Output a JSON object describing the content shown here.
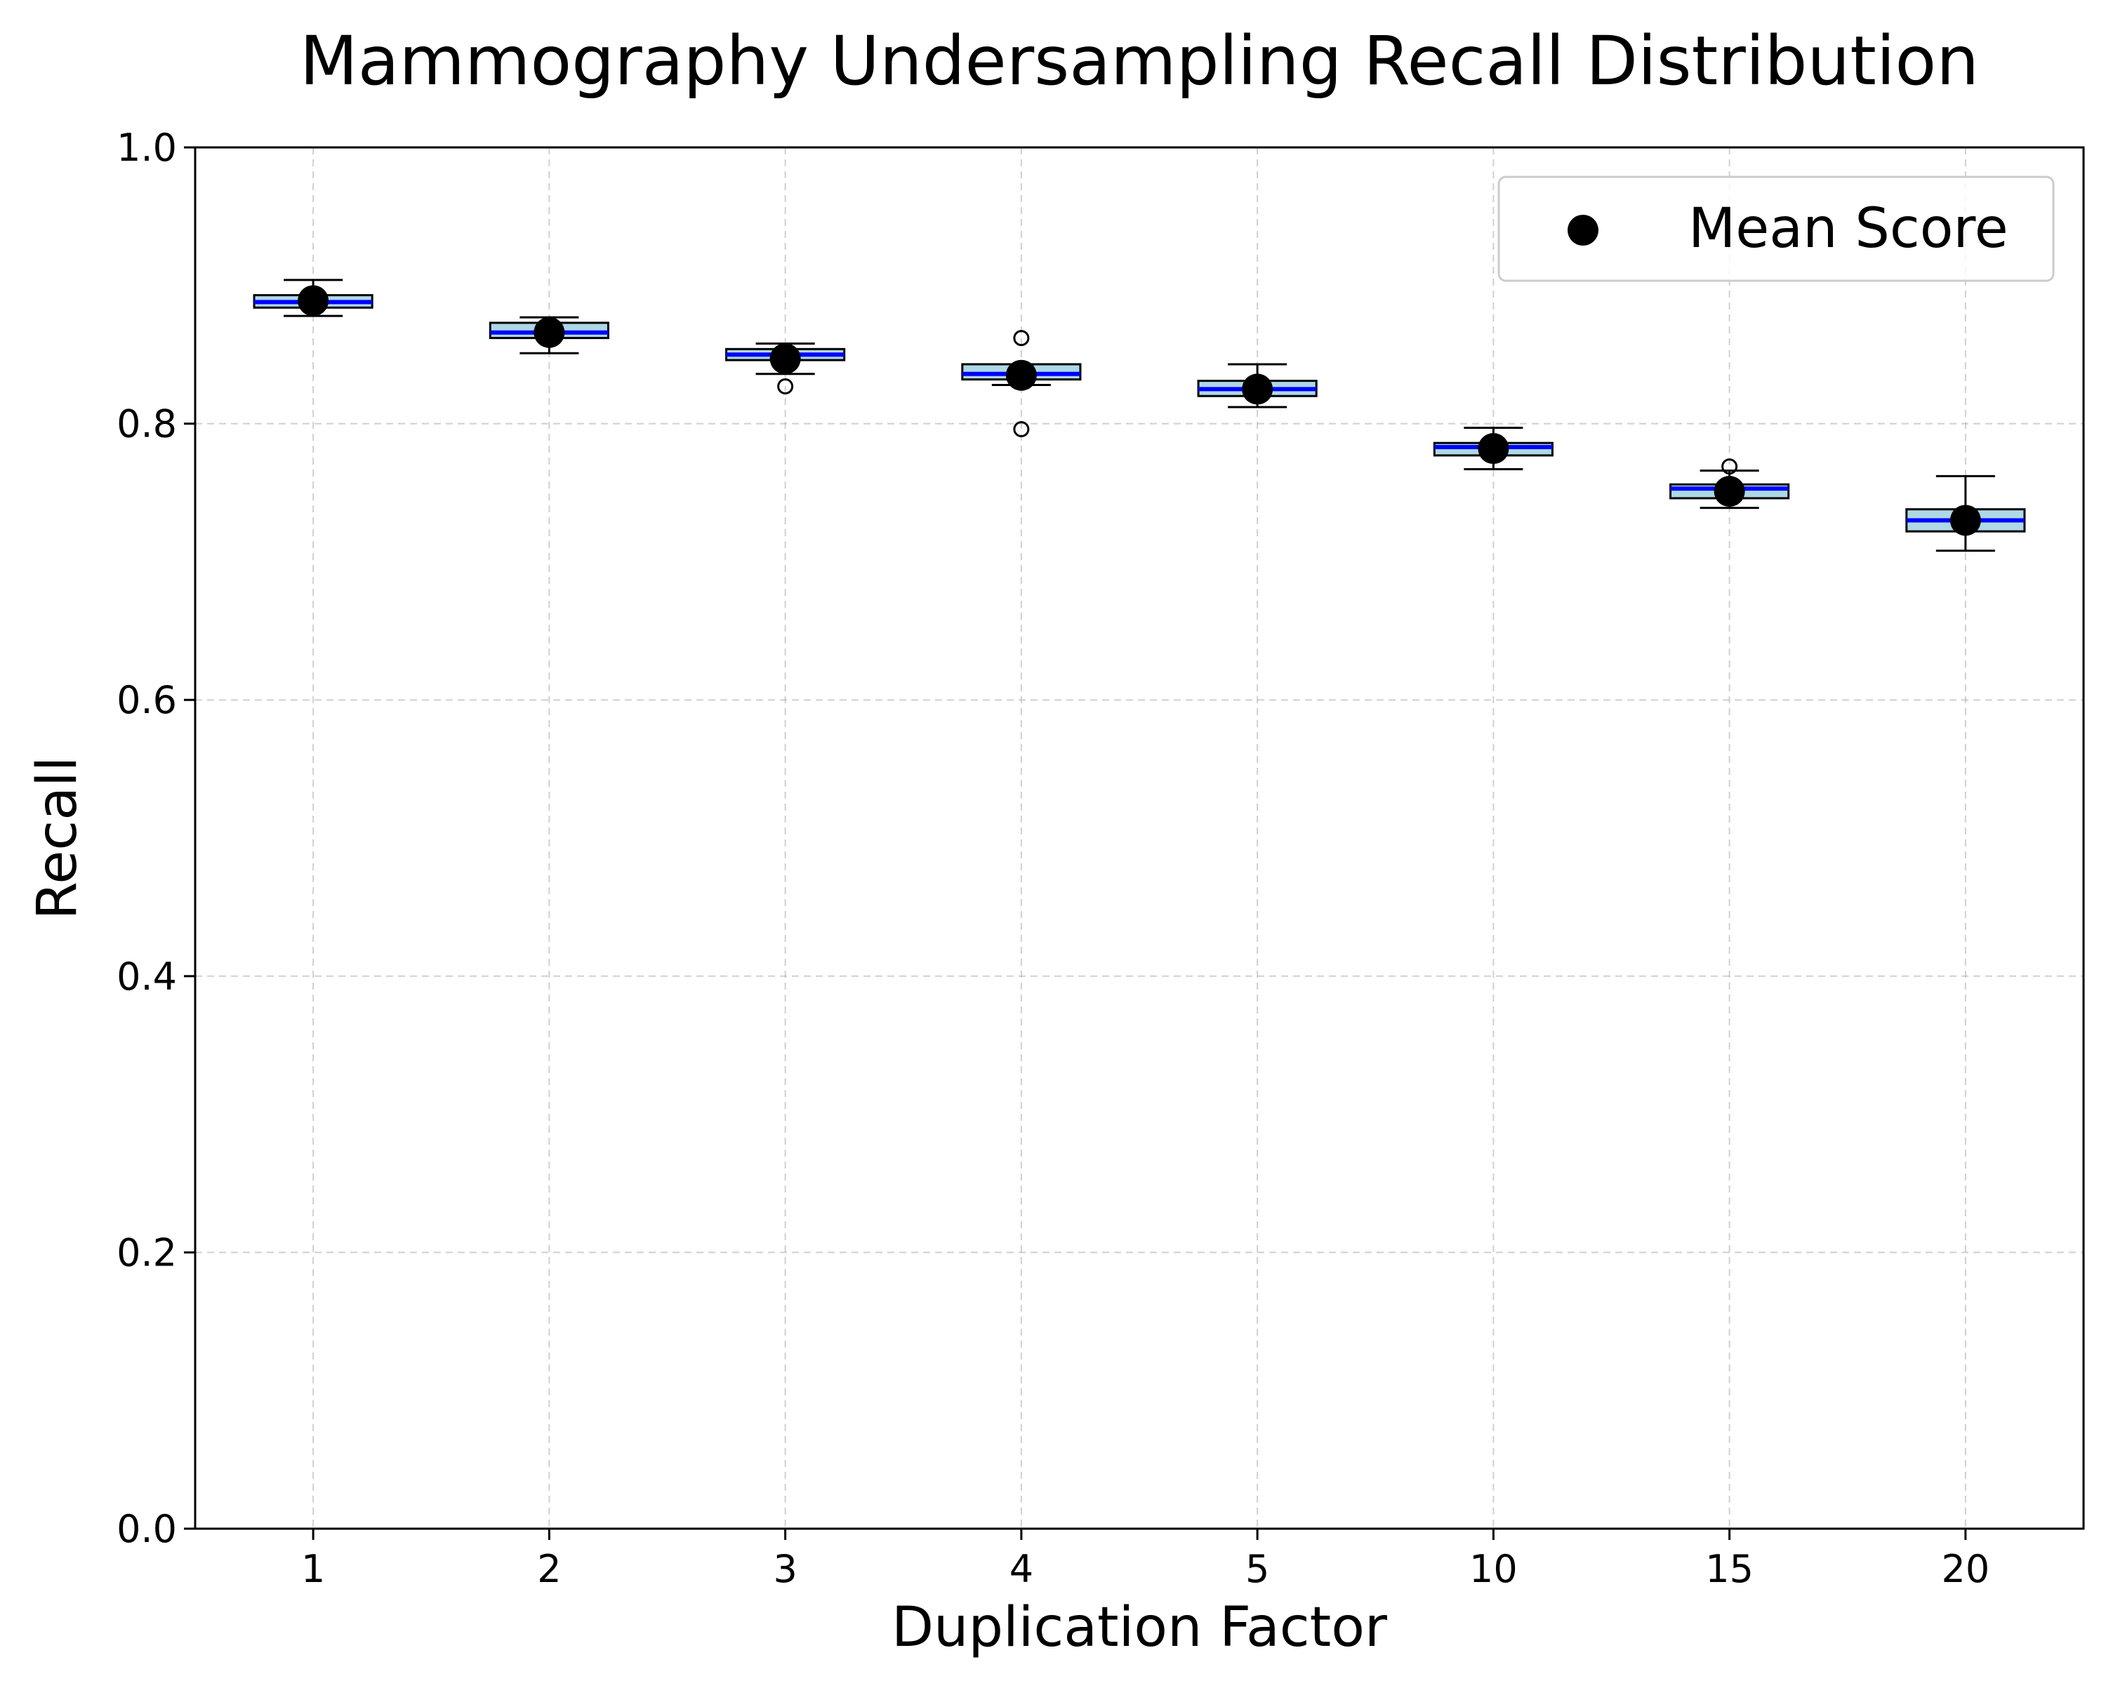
{
  "chart_data": {
    "type": "box",
    "title": "Mammography Undersampling Recall Distribution",
    "xlabel": "Duplication Factor",
    "ylabel": "Recall",
    "ylim": [
      0.0,
      1.0
    ],
    "yticks": [
      "0.0",
      "0.2",
      "0.4",
      "0.6",
      "0.8",
      "1.0"
    ],
    "categories": [
      "1",
      "2",
      "3",
      "4",
      "5",
      "10",
      "15",
      "20"
    ],
    "grid": true,
    "legend": {
      "position": "top-right",
      "entries": [
        "Mean Score"
      ]
    },
    "colors": {
      "box_fill": "#add8e6",
      "box_edge": "#000000",
      "median": "#0000ff",
      "mean_marker": "#000000",
      "grid": "#b0b0b0"
    },
    "boxes": [
      {
        "category": "1",
        "whisker_low": 0.878,
        "q1": 0.884,
        "median": 0.888,
        "q3": 0.893,
        "whisker_high": 0.904,
        "mean": 0.889,
        "outliers": []
      },
      {
        "category": "2",
        "whisker_low": 0.851,
        "q1": 0.862,
        "median": 0.866,
        "q3": 0.873,
        "whisker_high": 0.877,
        "mean": 0.866,
        "outliers": []
      },
      {
        "category": "3",
        "whisker_low": 0.836,
        "q1": 0.846,
        "median": 0.85,
        "q3": 0.854,
        "whisker_high": 0.858,
        "mean": 0.847,
        "outliers": [
          0.827
        ]
      },
      {
        "category": "4",
        "whisker_low": 0.828,
        "q1": 0.832,
        "median": 0.836,
        "q3": 0.843,
        "whisker_high": 0.843,
        "mean": 0.835,
        "outliers": [
          0.862,
          0.796
        ]
      },
      {
        "category": "5",
        "whisker_low": 0.812,
        "q1": 0.82,
        "median": 0.825,
        "q3": 0.831,
        "whisker_high": 0.843,
        "mean": 0.825,
        "outliers": []
      },
      {
        "category": "10",
        "whisker_low": 0.767,
        "q1": 0.777,
        "median": 0.783,
        "q3": 0.786,
        "whisker_high": 0.797,
        "mean": 0.782,
        "outliers": []
      },
      {
        "category": "15",
        "whisker_low": 0.739,
        "q1": 0.746,
        "median": 0.753,
        "q3": 0.756,
        "whisker_high": 0.766,
        "mean": 0.751,
        "outliers": [
          0.769
        ]
      },
      {
        "category": "20",
        "whisker_low": 0.708,
        "q1": 0.722,
        "median": 0.73,
        "q3": 0.738,
        "whisker_high": 0.762,
        "mean": 0.73,
        "outliers": []
      }
    ]
  }
}
